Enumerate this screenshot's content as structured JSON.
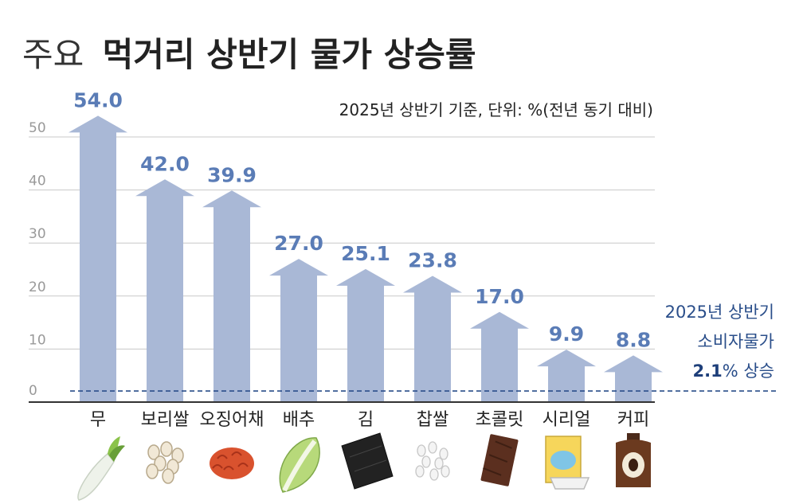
{
  "colors": {
    "bar": "#a9b8d6",
    "value_label": "#5a7cb6",
    "grid": "#c8c8c8",
    "tick": "#999999",
    "axis": "#333333",
    "text": "#222222",
    "dashed_line": "#2a4e8a",
    "note_highlight": "#1e3f7a"
  },
  "title": {
    "light": "주요",
    "bold": "먹거리 상반기 물가 상승률"
  },
  "note": "2025년 상반기 기준, 단위: %(전년 동기 대비)",
  "reference": {
    "line1": "2025년 상반기",
    "line2": "소비자물가",
    "value_text": "2.1",
    "suffix": "% 상승"
  },
  "items_icons": [
    "radish-icon",
    "barley-icon",
    "squid-kimchi-icon",
    "napa-cabbage-icon",
    "seaweed-icon",
    "glutinous-rice-icon",
    "chocolate-icon",
    "cereal-icon",
    "coffee-icon"
  ],
  "chart_data": {
    "type": "bar",
    "categories": [
      "무",
      "보리쌀",
      "오징어채",
      "배추",
      "김",
      "찹쌀",
      "초콜릿",
      "시리얼",
      "커피"
    ],
    "values": [
      54.0,
      42.0,
      39.9,
      27.0,
      25.1,
      23.8,
      17.0,
      9.9,
      8.8
    ],
    "value_labels": [
      "54.0",
      "42.0",
      "39.9",
      "27.0",
      "25.1",
      "23.8",
      "17.0",
      "9.9",
      "8.8"
    ],
    "yticks": [
      "0",
      "10",
      "20",
      "30",
      "40",
      "50"
    ],
    "ylim": [
      0,
      50
    ],
    "reference_value": 2.1,
    "grid": true
  }
}
